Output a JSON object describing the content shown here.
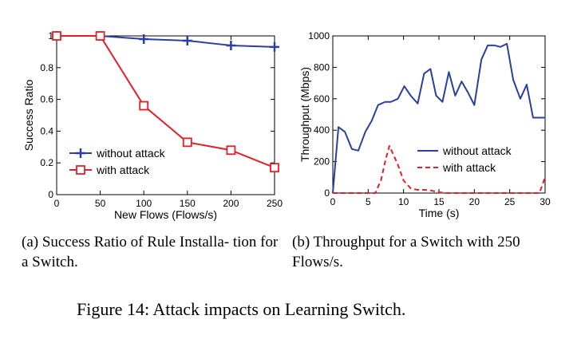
{
  "chart_data": [
    {
      "type": "line",
      "caption": "(a) Success Ratio of Rule Installa- tion for a Switch.",
      "xlabel": "New Flows (Flows/s)",
      "ylabel": "Success Ratio",
      "xlim": [
        0,
        250
      ],
      "ylim": [
        0,
        1
      ],
      "xticks": [
        0,
        50,
        100,
        150,
        200,
        250
      ],
      "yticks": [
        0,
        0.2,
        0.4,
        0.6,
        0.8,
        1
      ],
      "legend_position": "lower-left",
      "grid": false,
      "series": [
        {
          "name": "without attack",
          "color": "#2b3f9e",
          "marker": "plus",
          "x": [
            0,
            50,
            100,
            150,
            200,
            250
          ],
          "y": [
            1.0,
            1.0,
            0.98,
            0.97,
            0.94,
            0.93
          ]
        },
        {
          "name": "with attack",
          "color": "#e0202a",
          "marker": "square",
          "x": [
            0,
            50,
            100,
            150,
            200,
            250
          ],
          "y": [
            1.0,
            1.0,
            0.56,
            0.33,
            0.28,
            0.17
          ]
        }
      ]
    },
    {
      "type": "line",
      "caption": "(b) Throughput for a Switch with 250 Flows/s.",
      "xlabel": "Time (s)",
      "ylabel": "Throughput (Mbps)",
      "xlim": [
        0,
        30
      ],
      "ylim": [
        0,
        1000
      ],
      "xticks": [
        0,
        5,
        10,
        15,
        20,
        25,
        30
      ],
      "yticks": [
        0,
        200,
        400,
        600,
        800,
        1000
      ],
      "legend_position": "center-right",
      "grid": false,
      "series": [
        {
          "name": "without attack",
          "color": "#2b3f9e",
          "dash": "solid",
          "x": [
            0,
            0.8,
            1.7,
            2.7,
            3.6,
            4.6,
            5.5,
            6.4,
            7.4,
            8.2,
            9.2,
            10.1,
            11.0,
            12.0,
            12.9,
            13.8,
            14.6,
            15.5,
            16.4,
            17.3,
            18.2,
            19.1,
            20.0,
            21.0,
            21.9,
            22.8,
            23.7,
            24.6,
            25.5,
            26.5,
            27.4,
            28.3,
            29.2,
            30.0
          ],
          "y": [
            0,
            420,
            390,
            280,
            270,
            390,
            460,
            560,
            580,
            580,
            600,
            680,
            620,
            570,
            760,
            790,
            620,
            580,
            770,
            620,
            710,
            640,
            560,
            850,
            940,
            940,
            930,
            950,
            720,
            600,
            690,
            480,
            480,
            480
          ]
        },
        {
          "name": "with attack",
          "color": "#e0202a",
          "dash": "dashed",
          "x": [
            0,
            1,
            2,
            3,
            4,
            5,
            6,
            6.8,
            7.5,
            8.0,
            8.5,
            9.2,
            10.0,
            11.0,
            12.0,
            13.0,
            14.0,
            15.0,
            16.0,
            17.0,
            18.0,
            20.0,
            22.0,
            24.0,
            26.0,
            28.0,
            29.2,
            30.0
          ],
          "y": [
            0,
            0,
            0,
            0,
            0,
            0,
            0,
            80,
            220,
            300,
            250,
            180,
            80,
            30,
            20,
            20,
            15,
            5,
            0,
            0,
            0,
            0,
            0,
            0,
            0,
            0,
            0,
            100
          ]
        }
      ]
    }
  ],
  "figure_caption": "Figure 14: Attack impacts on Learning Switch."
}
